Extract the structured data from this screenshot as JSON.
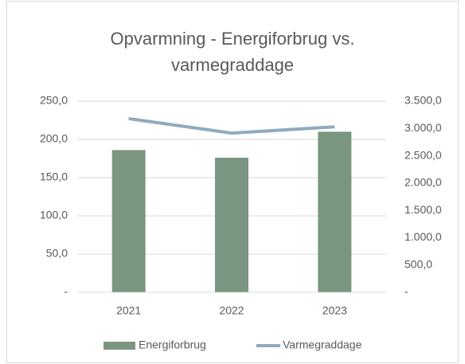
{
  "chart_data": {
    "type": "bar_line",
    "title": "Opvarmning - Energiforbrug vs. varmegraddage",
    "categories": [
      "2021",
      "2022",
      "2023"
    ],
    "series": [
      {
        "name": "Energiforbrug",
        "type": "bar",
        "color": "#7a9580",
        "values": [
          186,
          176,
          210
        ]
      },
      {
        "name": "Varmegraddage",
        "type": "line",
        "axis": "y2",
        "color": "#8faabf",
        "values": [
          3180,
          2915,
          3030
        ]
      }
    ],
    "ylim": [
      0,
      250
    ],
    "yticks": [
      {
        "value": 0,
        "label": "-"
      },
      {
        "value": 50,
        "label": "50,0"
      },
      {
        "value": 100,
        "label": "100,0"
      },
      {
        "value": 150,
        "label": "150,0"
      },
      {
        "value": 200,
        "label": "200,0"
      },
      {
        "value": 250,
        "label": "250,0"
      }
    ],
    "y2lim": [
      0,
      3500
    ],
    "y2ticks": [
      {
        "value": 0,
        "label": "-"
      },
      {
        "value": 500,
        "label": "500,0"
      },
      {
        "value": 1000,
        "label": "1.000,0"
      },
      {
        "value": 1500,
        "label": "1.500,0"
      },
      {
        "value": 2000,
        "label": "2.000,0"
      },
      {
        "value": 2500,
        "label": "2.500,0"
      },
      {
        "value": 3000,
        "label": "3.000,0"
      },
      {
        "value": 3500,
        "label": "3.500,0"
      }
    ],
    "grid": true,
    "legend": "bottom"
  }
}
